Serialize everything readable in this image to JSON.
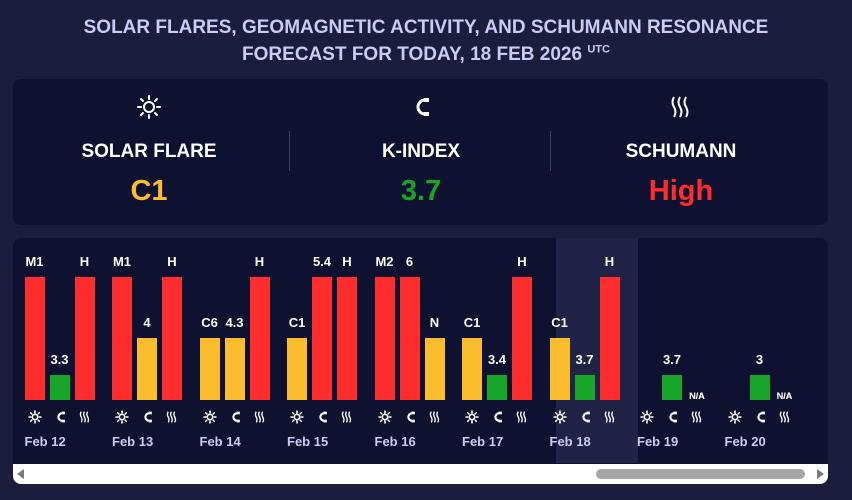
{
  "header": {
    "title_line1": "SOLAR FLARES, GEOMAGNETIC ACTIVITY, AND SCHUMANN RESONANCE",
    "title_line2": "FORECAST FOR TODAY, 18 FEB 2026",
    "title_tz": "UTC"
  },
  "summary": {
    "solar": {
      "label": "SOLAR FLARE",
      "value": "C1",
      "color": "#fbbd2e",
      "icon": "sun-icon"
    },
    "kindex": {
      "label": "K-INDEX",
      "value": "3.7",
      "color": "#17a52a",
      "icon": "magnet-icon"
    },
    "schumann": {
      "label": "SCHUMANN",
      "value": "High",
      "color": "#ff2d2d",
      "icon": "waves-icon"
    }
  },
  "colors": {
    "red": "#ff2d2d",
    "yellow": "#fbbd2e",
    "green": "#17a52a"
  },
  "chart_data": {
    "type": "bar",
    "series_types": [
      "solar flare",
      "k-index",
      "schumann"
    ],
    "selected_day": "Feb 18",
    "days": [
      {
        "label": "",
        "bars": [
          {
            "type": "solar",
            "value_label": "",
            "level": 1.0,
            "color": "red"
          },
          {
            "type": "kp",
            "value_label": "",
            "level": 0,
            "color": ""
          },
          {
            "type": "schumann",
            "value_label": "H",
            "level": 1.0,
            "color": "red"
          }
        ]
      },
      {
        "label": "Feb 12",
        "bars": [
          {
            "type": "solar",
            "value_label": "M1",
            "level": 1.0,
            "color": "red"
          },
          {
            "type": "kp",
            "value_label": "3.3",
            "level": 0.2,
            "color": "green"
          },
          {
            "type": "schumann",
            "value_label": "H",
            "level": 1.0,
            "color": "red"
          }
        ]
      },
      {
        "label": "Feb 13",
        "bars": [
          {
            "type": "solar",
            "value_label": "M1",
            "level": 1.0,
            "color": "red"
          },
          {
            "type": "kp",
            "value_label": "4",
            "level": 0.5,
            "color": "yellow"
          },
          {
            "type": "schumann",
            "value_label": "H",
            "level": 1.0,
            "color": "red"
          }
        ]
      },
      {
        "label": "Feb 14",
        "bars": [
          {
            "type": "solar",
            "value_label": "C6",
            "level": 0.5,
            "color": "yellow"
          },
          {
            "type": "kp",
            "value_label": "4.3",
            "level": 0.5,
            "color": "yellow"
          },
          {
            "type": "schumann",
            "value_label": "H",
            "level": 1.0,
            "color": "red"
          }
        ]
      },
      {
        "label": "Feb 15",
        "bars": [
          {
            "type": "solar",
            "value_label": "C1",
            "level": 0.5,
            "color": "yellow"
          },
          {
            "type": "kp",
            "value_label": "5.4",
            "level": 1.0,
            "color": "red"
          },
          {
            "type": "schumann",
            "value_label": "H",
            "level": 1.0,
            "color": "red"
          }
        ]
      },
      {
        "label": "Feb 16",
        "bars": [
          {
            "type": "solar",
            "value_label": "M2",
            "level": 1.0,
            "color": "red"
          },
          {
            "type": "kp",
            "value_label": "6",
            "level": 1.0,
            "color": "red"
          },
          {
            "type": "schumann",
            "value_label": "N",
            "level": 0.5,
            "color": "yellow"
          }
        ]
      },
      {
        "label": "Feb 17",
        "bars": [
          {
            "type": "solar",
            "value_label": "C1",
            "level": 0.5,
            "color": "yellow"
          },
          {
            "type": "kp",
            "value_label": "3.4",
            "level": 0.2,
            "color": "green"
          },
          {
            "type": "schumann",
            "value_label": "H",
            "level": 1.0,
            "color": "red"
          }
        ]
      },
      {
        "label": "Feb 18",
        "bars": [
          {
            "type": "solar",
            "value_label": "C1",
            "level": 0.5,
            "color": "yellow"
          },
          {
            "type": "kp",
            "value_label": "3.7",
            "level": 0.2,
            "color": "green"
          },
          {
            "type": "schumann",
            "value_label": "H",
            "level": 1.0,
            "color": "red"
          }
        ]
      },
      {
        "label": "Feb 19",
        "bars": [
          {
            "type": "solar",
            "value_label": "",
            "level": 0,
            "color": ""
          },
          {
            "type": "kp",
            "value_label": "3.7",
            "level": 0.2,
            "color": "green"
          },
          {
            "type": "schumann",
            "value_label": "N/A",
            "level": 0,
            "color": ""
          }
        ],
        "solar_na": "N/A"
      },
      {
        "label": "Feb 20",
        "bars": [
          {
            "type": "solar",
            "value_label": "",
            "level": 0,
            "color": ""
          },
          {
            "type": "kp",
            "value_label": "3",
            "level": 0.2,
            "color": "green"
          },
          {
            "type": "schumann",
            "value_label": "N/A",
            "level": 0,
            "color": ""
          }
        ],
        "solar_na": "N/A"
      }
    ]
  }
}
